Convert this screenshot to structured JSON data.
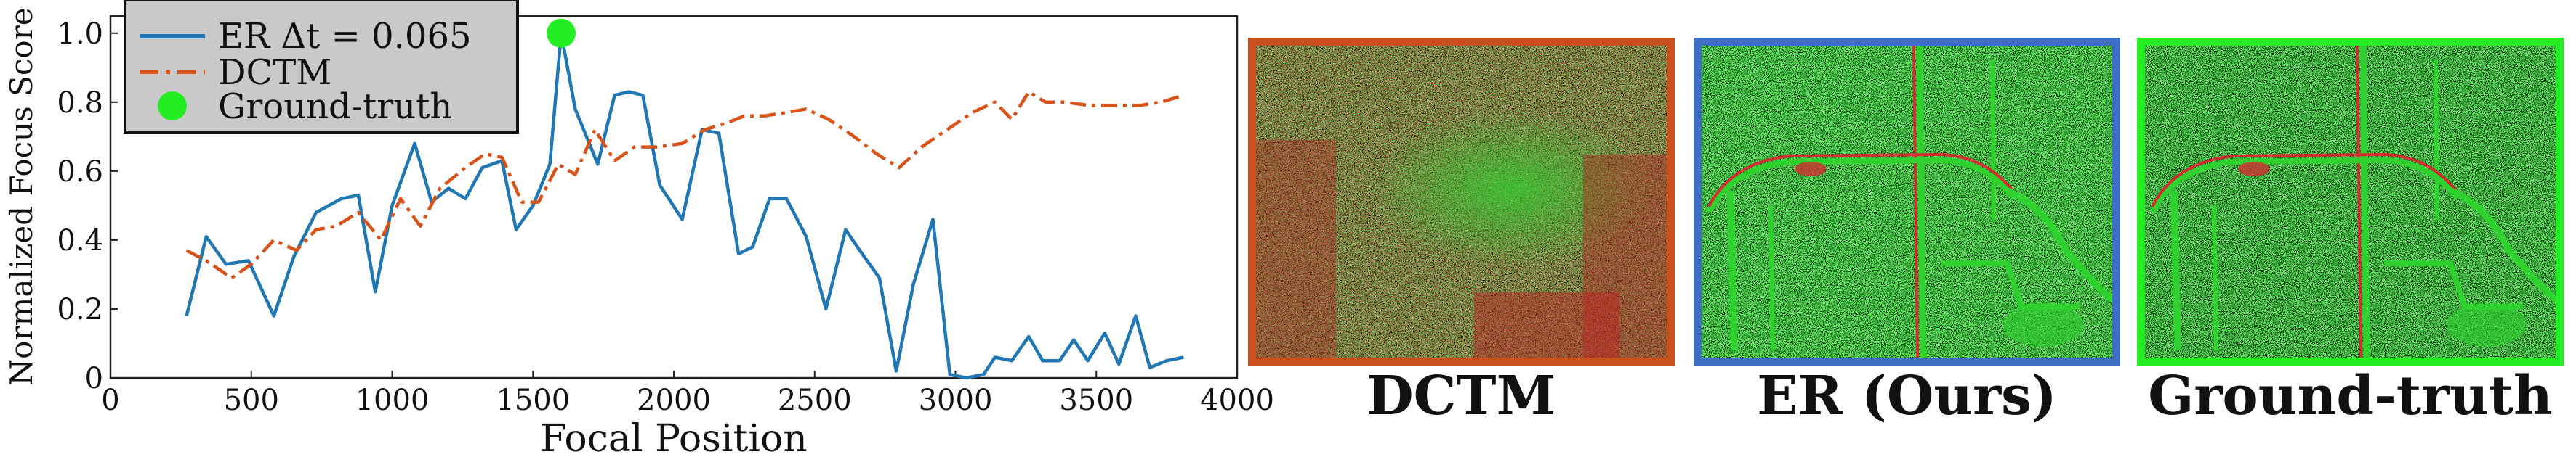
{
  "chart_data": {
    "type": "line",
    "xlabel": "Focal Position",
    "ylabel": "Normalized Focus Score",
    "xlim": [
      0,
      4000
    ],
    "ylim": [
      0,
      1.05
    ],
    "x_ticks": [
      "0",
      "500",
      "1000",
      "1500",
      "2000",
      "2500",
      "3000",
      "3500",
      "4000"
    ],
    "y_ticks": [
      "0",
      "0.2",
      "0.4",
      "0.6",
      "0.8",
      "1.0"
    ],
    "grid": false,
    "legend_position": "top-left",
    "series": [
      {
        "name": "ER Δt = 0.065",
        "color": "#1f77b4",
        "style": "solid",
        "x": [
          270,
          340,
          410,
          490,
          580,
          650,
          730,
          820,
          880,
          940,
          1000,
          1080,
          1140,
          1200,
          1260,
          1320,
          1390,
          1440,
          1500,
          1560,
          1600,
          1650,
          1730,
          1790,
          1840,
          1890,
          1950,
          2030,
          2100,
          2160,
          2230,
          2280,
          2340,
          2400,
          2470,
          2540,
          2610,
          2660,
          2730,
          2790,
          2850,
          2920,
          2980,
          3040,
          3100,
          3140,
          3200,
          3260,
          3310,
          3370,
          3420,
          3470,
          3530,
          3580,
          3640,
          3690,
          3750,
          3810
        ],
        "y": [
          0.18,
          0.41,
          0.33,
          0.34,
          0.18,
          0.35,
          0.48,
          0.52,
          0.53,
          0.25,
          0.5,
          0.68,
          0.51,
          0.55,
          0.52,
          0.61,
          0.63,
          0.43,
          0.5,
          0.62,
          1.0,
          0.78,
          0.62,
          0.82,
          0.83,
          0.82,
          0.56,
          0.46,
          0.72,
          0.71,
          0.36,
          0.38,
          0.52,
          0.52,
          0.41,
          0.2,
          0.43,
          0.37,
          0.29,
          0.02,
          0.27,
          0.46,
          0.01,
          0.0,
          0.01,
          0.06,
          0.05,
          0.12,
          0.05,
          0.05,
          0.11,
          0.05,
          0.13,
          0.04,
          0.18,
          0.03,
          0.05,
          0.06
        ]
      },
      {
        "name": "DCTM",
        "color": "#d95319",
        "style": "dashdot",
        "x": [
          270,
          340,
          430,
          500,
          580,
          660,
          730,
          800,
          880,
          960,
          1030,
          1100,
          1170,
          1260,
          1330,
          1390,
          1460,
          1520,
          1590,
          1650,
          1720,
          1790,
          1860,
          1940,
          2030,
          2110,
          2190,
          2250,
          2320,
          2400,
          2470,
          2550,
          2640,
          2720,
          2800,
          2880,
          2970,
          3060,
          3140,
          3200,
          3260,
          3320,
          3390,
          3480,
          3560,
          3650,
          3730,
          3810
        ],
        "y": [
          0.37,
          0.34,
          0.29,
          0.33,
          0.4,
          0.37,
          0.43,
          0.44,
          0.48,
          0.4,
          0.52,
          0.44,
          0.55,
          0.61,
          0.65,
          0.64,
          0.51,
          0.51,
          0.62,
          0.59,
          0.72,
          0.63,
          0.67,
          0.67,
          0.68,
          0.72,
          0.74,
          0.76,
          0.76,
          0.77,
          0.78,
          0.75,
          0.7,
          0.65,
          0.61,
          0.67,
          0.72,
          0.77,
          0.8,
          0.75,
          0.83,
          0.8,
          0.8,
          0.79,
          0.79,
          0.79,
          0.8,
          0.82
        ]
      },
      {
        "name": "Ground-truth",
        "color": "#22ee22",
        "style": "marker",
        "x": [
          1600
        ],
        "y": [
          1.0
        ]
      }
    ]
  },
  "panels": [
    {
      "caption": "DCTM",
      "border_color": "#c8501e",
      "content": "blurred event frame: green and red event noise"
    },
    {
      "caption": "ER (Ours)",
      "border_color": "#3f6fc4",
      "content": "sharp event frame: car outline edges in green and red"
    },
    {
      "caption": "Ground-truth",
      "border_color": "#22ee22",
      "content": "sharp event frame: car outline edges in green and red"
    }
  ]
}
